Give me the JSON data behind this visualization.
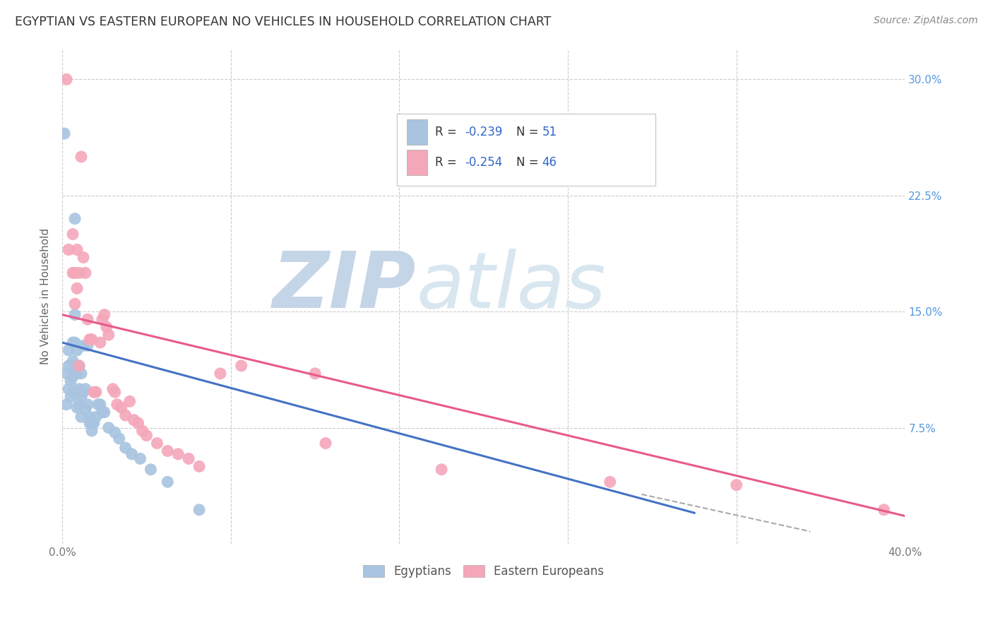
{
  "title": "EGYPTIAN VS EASTERN EUROPEAN NO VEHICLES IN HOUSEHOLD CORRELATION CHART",
  "source": "Source: ZipAtlas.com",
  "ylabel": "No Vehicles in Household",
  "xlim": [
    0.0,
    0.4
  ],
  "ylim": [
    0.0,
    0.32
  ],
  "xticks": [
    0.0,
    0.08,
    0.16,
    0.24,
    0.32,
    0.4
  ],
  "yticks": [
    0.0,
    0.075,
    0.15,
    0.225,
    0.3
  ],
  "blue_color": "#a8c4e0",
  "pink_color": "#f4a7b9",
  "blue_line_color": "#4472c4",
  "pink_line_color": "#e85a8a",
  "dashed_line_color": "#aaaaaa",
  "legend_label1": "Egyptians",
  "legend_label2": "Eastern Europeans",
  "blue_scatter_x": [
    0.001,
    0.002,
    0.002,
    0.003,
    0.003,
    0.003,
    0.004,
    0.004,
    0.005,
    0.005,
    0.005,
    0.005,
    0.006,
    0.006,
    0.006,
    0.006,
    0.007,
    0.007,
    0.007,
    0.007,
    0.008,
    0.008,
    0.008,
    0.009,
    0.009,
    0.009,
    0.01,
    0.01,
    0.011,
    0.011,
    0.012,
    0.012,
    0.013,
    0.013,
    0.014,
    0.014,
    0.015,
    0.016,
    0.017,
    0.018,
    0.019,
    0.02,
    0.022,
    0.025,
    0.027,
    0.03,
    0.033,
    0.037,
    0.042,
    0.05,
    0.065
  ],
  "blue_scatter_y": [
    0.265,
    0.11,
    0.09,
    0.125,
    0.115,
    0.1,
    0.105,
    0.095,
    0.13,
    0.118,
    0.108,
    0.098,
    0.21,
    0.148,
    0.13,
    0.115,
    0.125,
    0.11,
    0.098,
    0.088,
    0.115,
    0.1,
    0.09,
    0.11,
    0.095,
    0.082,
    0.128,
    0.098,
    0.1,
    0.087,
    0.128,
    0.09,
    0.082,
    0.078,
    0.078,
    0.073,
    0.078,
    0.082,
    0.09,
    0.09,
    0.085,
    0.085,
    0.075,
    0.072,
    0.068,
    0.062,
    0.058,
    0.055,
    0.048,
    0.04,
    0.022
  ],
  "pink_scatter_x": [
    0.002,
    0.003,
    0.005,
    0.005,
    0.006,
    0.006,
    0.007,
    0.007,
    0.008,
    0.008,
    0.009,
    0.01,
    0.011,
    0.012,
    0.013,
    0.014,
    0.015,
    0.016,
    0.018,
    0.019,
    0.02,
    0.021,
    0.022,
    0.024,
    0.025,
    0.026,
    0.028,
    0.03,
    0.032,
    0.034,
    0.036,
    0.038,
    0.04,
    0.045,
    0.05,
    0.055,
    0.06,
    0.065,
    0.075,
    0.085,
    0.12,
    0.125,
    0.18,
    0.26,
    0.32,
    0.39
  ],
  "pink_scatter_y": [
    0.3,
    0.19,
    0.2,
    0.175,
    0.175,
    0.155,
    0.19,
    0.165,
    0.175,
    0.115,
    0.25,
    0.185,
    0.175,
    0.145,
    0.132,
    0.132,
    0.098,
    0.098,
    0.13,
    0.145,
    0.148,
    0.14,
    0.135,
    0.1,
    0.098,
    0.09,
    0.088,
    0.083,
    0.092,
    0.08,
    0.078,
    0.073,
    0.07,
    0.065,
    0.06,
    0.058,
    0.055,
    0.05,
    0.11,
    0.115,
    0.11,
    0.065,
    0.048,
    0.04,
    0.038,
    0.022
  ],
  "blue_line_x": [
    0.0,
    0.3
  ],
  "blue_line_y": [
    0.13,
    0.02
  ],
  "pink_line_x": [
    0.0,
    0.4
  ],
  "pink_line_y": [
    0.148,
    0.018
  ],
  "dashed_line_x": [
    0.275,
    0.355
  ],
  "dashed_line_y": [
    0.032,
    0.008
  ]
}
